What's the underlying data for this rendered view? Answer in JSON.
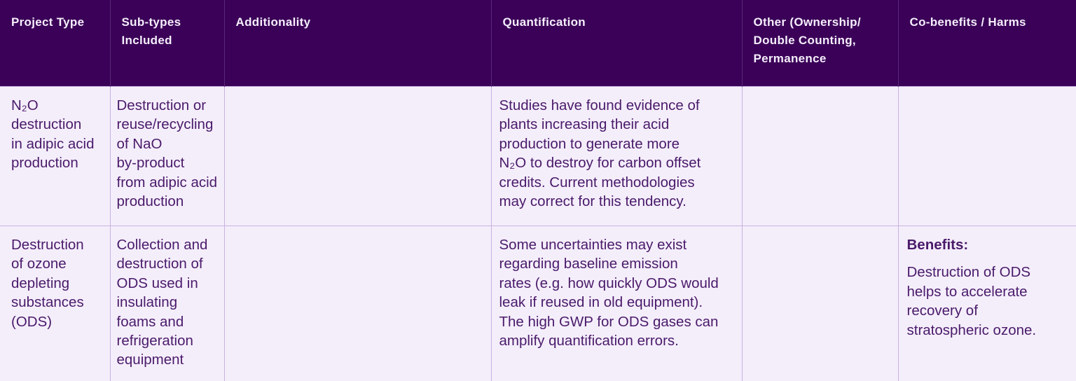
{
  "table": {
    "headers": [
      "Project Type",
      "Sub-types\nIncluded",
      "Additionality",
      "Quantification",
      "Other (Ownership/\nDouble Counting,\nPermanence",
      "Co-benefits / Harms"
    ],
    "rows": [
      {
        "project_type": "N₂O\ndestruction\nin adipic acid\nproduction",
        "subtypes": "Destruction or\nreuse/recycling\nof NaO\nby-product\nfrom adipic acid\nproduction",
        "additionality": "",
        "quantification": "Studies have found evidence of\nplants increasing their acid\nproduction to generate more\nN₂O to destroy for carbon offset\ncredits. Current methodologies\nmay correct for this tendency.",
        "other": "",
        "cobenefits_title": "",
        "cobenefits": ""
      },
      {
        "project_type": "Destruction\nof ozone\ndepleting\nsubstances\n(ODS)",
        "subtypes": "Collection and\ndestruction of\nODS used in\ninsulating\nfoams and\nrefrigeration\nequipment",
        "additionality": "",
        "quantification": "Some uncertainties may exist\nregarding baseline emission\nrates (e.g. how quickly ODS would\nleak if reused in old equipment).\nThe high GWP for ODS gases can\namplify quantification errors.",
        "other": "",
        "cobenefits_title": "Benefits:",
        "cobenefits": "Destruction of ODS\nhelps to accelerate\nrecovery of\nstratospheric ozone."
      }
    ]
  },
  "colors": {
    "header_bg": "#3b0058",
    "body_bg": "#f4eefb",
    "text": "#4a1a6a",
    "border": "#c9b3df"
  }
}
